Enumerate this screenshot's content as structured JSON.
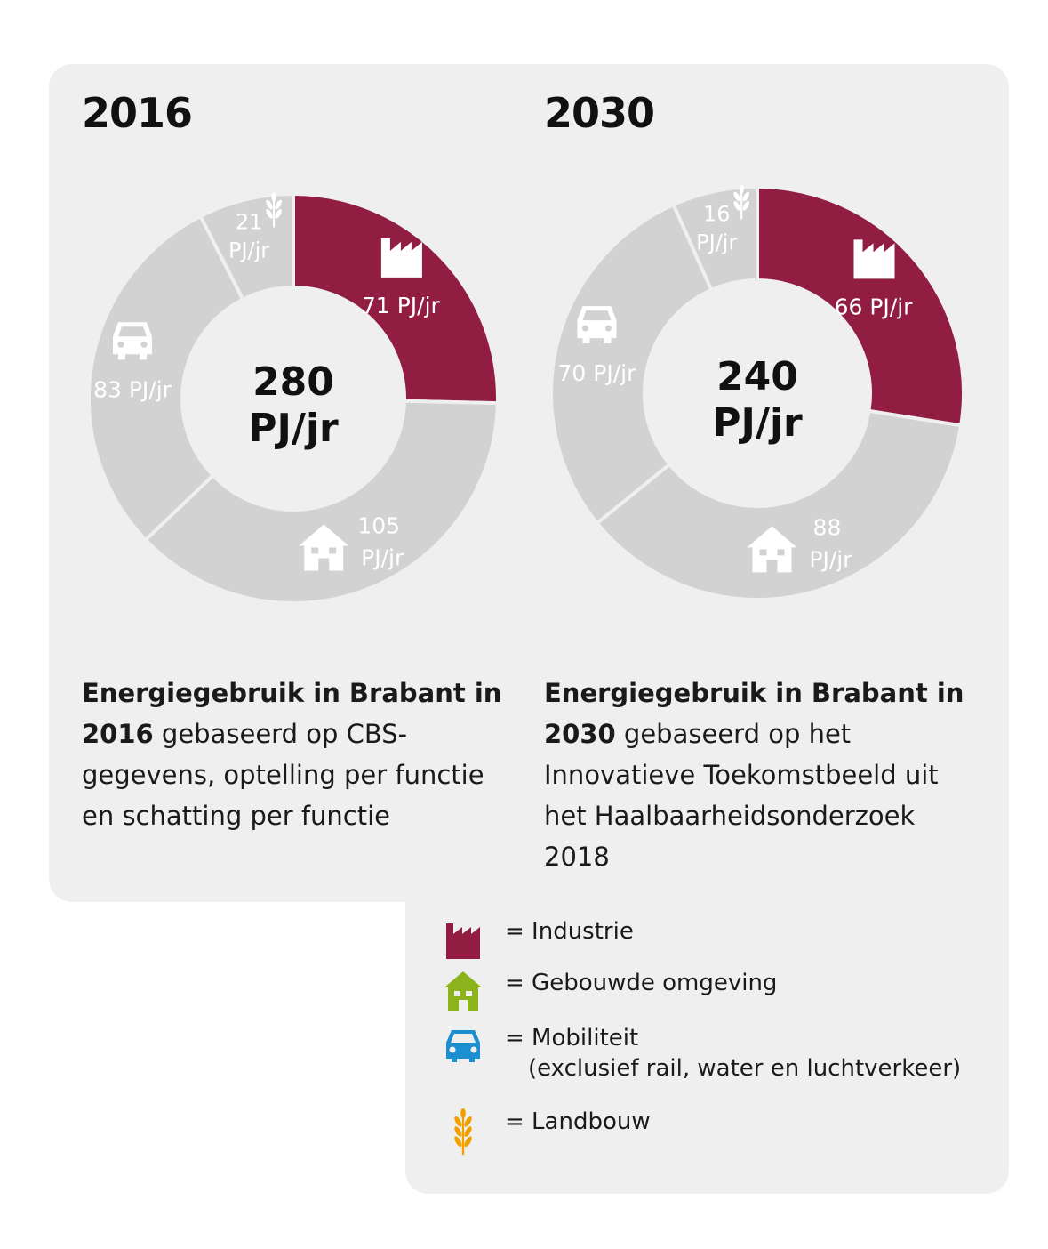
{
  "colors": {
    "industry": "#911e42",
    "segment_grey": "#d2d2d2",
    "built": "#8cb31c",
    "mobility": "#1c8fd1",
    "agriculture": "#f2a000",
    "panel": "#efefef"
  },
  "chart_data": [
    {
      "type": "pie",
      "title": "2016",
      "center_value": "280",
      "center_unit": "PJ/jr",
      "slices": [
        {
          "label": "Industrie",
          "value": 71,
          "value_label": "71 PJ/jr",
          "icon": "factory-icon",
          "highlight": true
        },
        {
          "label": "Gebouwde omgeving",
          "value": 105,
          "value_label_1": "105",
          "value_label_2": "PJ/jr",
          "icon": "house-icon",
          "highlight": false
        },
        {
          "label": "Mobiliteit",
          "value": 83,
          "value_label": "83 PJ/jr",
          "icon": "car-icon",
          "highlight": false
        },
        {
          "label": "Landbouw",
          "value": 21,
          "value_label_1": "21",
          "value_label_2": "PJ/jr",
          "icon": "wheat-icon",
          "highlight": false
        }
      ]
    },
    {
      "type": "pie",
      "title": "2030",
      "center_value": "240",
      "center_unit": "PJ/jr",
      "slices": [
        {
          "label": "Industrie",
          "value": 66,
          "value_label": "66 PJ/jr",
          "icon": "factory-icon",
          "highlight": true
        },
        {
          "label": "Gebouwde omgeving",
          "value": 88,
          "value_label_1": "88",
          "value_label_2": "PJ/jr",
          "icon": "house-icon",
          "highlight": false
        },
        {
          "label": "Mobiliteit",
          "value": 70,
          "value_label": "70 PJ/jr",
          "icon": "car-icon",
          "highlight": false
        },
        {
          "label": "Landbouw",
          "value": 16,
          "value_label_1": "16",
          "value_label_2": "PJ/jr",
          "icon": "wheat-icon",
          "highlight": false
        }
      ]
    }
  ],
  "descriptions": {
    "left": {
      "bold": "Energiegebruik in Brabant in 2016",
      "rest": " gebaseerd op CBS-gegevens, optelling per functie en schatting per functie"
    },
    "right": {
      "bold": "Energiegebruik in Brabant in 2030",
      "rest": " gebaseerd op het Innovatieve Toekomstbeeld uit het Haalbaarheidsonderzoek 2018"
    }
  },
  "legend": [
    {
      "icon": "factory-icon",
      "text": "= Industrie"
    },
    {
      "icon": "house-icon",
      "text": "= Gebouwde omgeving"
    },
    {
      "icon": "car-icon",
      "text": "= Mobiliteit",
      "sub": "(exclusief rail, water en luchtverkeer)"
    },
    {
      "icon": "wheat-icon",
      "text": "= Landbouw"
    }
  ]
}
